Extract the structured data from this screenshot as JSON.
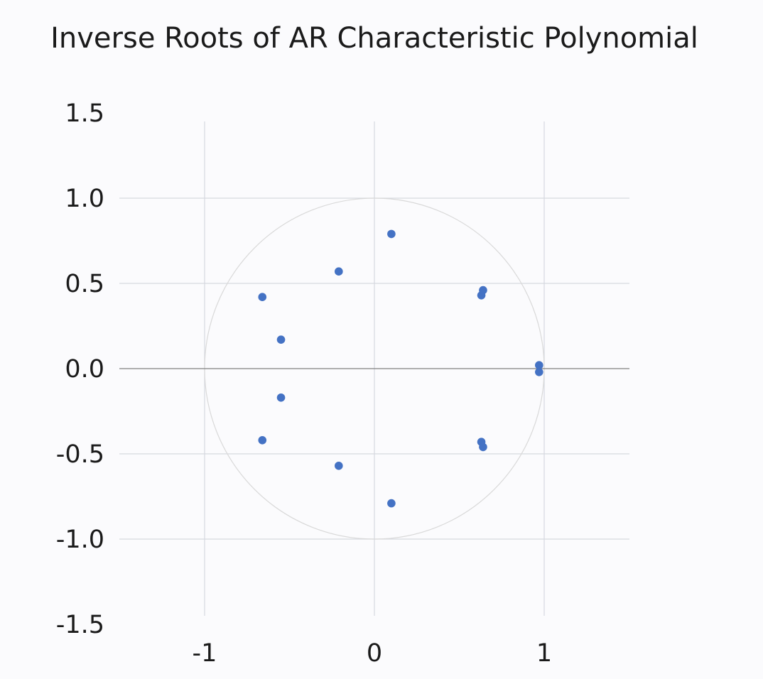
{
  "chart_data": {
    "type": "scatter",
    "title": "Inverse Roots of AR Characteristic Polynomial",
    "xlabel": "",
    "ylabel": "",
    "xlim": [
      -1.5,
      1.5
    ],
    "ylim": [
      -1.5,
      1.5
    ],
    "x_ticks": [
      -1,
      0,
      1
    ],
    "x_tick_labels": [
      "-1",
      "0",
      "1"
    ],
    "y_ticks": [
      1.5,
      1.0,
      0.5,
      0.0,
      -0.5,
      -1.0,
      -1.5
    ],
    "y_tick_labels": [
      "1.5",
      "1.0",
      "0.5",
      "0.0",
      "-0.5",
      "-1.0",
      "-1.5"
    ],
    "grid": true,
    "unit_circle": true,
    "colors": {
      "points": "#4472c4",
      "grid": "#d6d9e0",
      "axis": "#7f7f7f",
      "circle": "#d9d9d9"
    },
    "series": [
      {
        "points": [
          {
            "x": 0.1,
            "y": 0.79
          },
          {
            "x": -0.21,
            "y": 0.57
          },
          {
            "x": -0.66,
            "y": 0.42
          },
          {
            "x": 0.63,
            "y": 0.43
          },
          {
            "x": 0.64,
            "y": 0.46
          },
          {
            "x": -0.55,
            "y": 0.17
          },
          {
            "x": 0.97,
            "y": 0.02
          },
          {
            "x": 0.97,
            "y": -0.02
          },
          {
            "x": -0.55,
            "y": -0.17
          },
          {
            "x": -0.66,
            "y": -0.42
          },
          {
            "x": 0.63,
            "y": -0.43
          },
          {
            "x": 0.64,
            "y": -0.46
          },
          {
            "x": -0.21,
            "y": -0.57
          },
          {
            "x": 0.1,
            "y": -0.79
          }
        ]
      }
    ]
  }
}
